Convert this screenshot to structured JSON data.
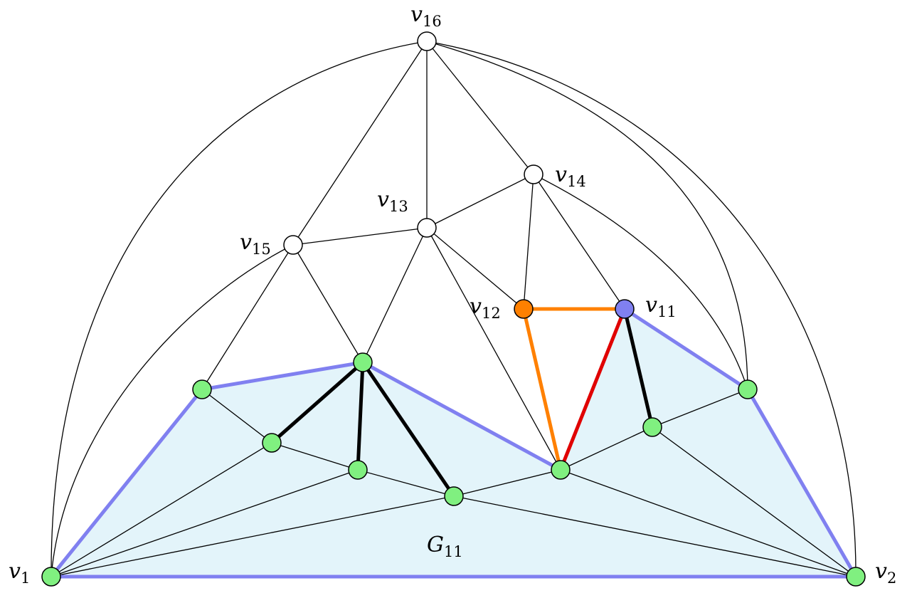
{
  "graph": {
    "region_label": {
      "base": "G",
      "sub": "11"
    },
    "vertex_labels": [
      {
        "id": "v1",
        "base": "v",
        "sub": "1"
      },
      {
        "id": "v2",
        "base": "v",
        "sub": "2"
      },
      {
        "id": "v11",
        "base": "v",
        "sub": "11"
      },
      {
        "id": "v12",
        "base": "v",
        "sub": "12"
      },
      {
        "id": "v13",
        "base": "v",
        "sub": "13"
      },
      {
        "id": "v14",
        "base": "v",
        "sub": "14"
      },
      {
        "id": "v15",
        "base": "v",
        "sub": "15"
      },
      {
        "id": "v16",
        "base": "v",
        "sub": "16"
      }
    ],
    "colors": {
      "region_fill": "#e3f4fa",
      "outer_face": "#8080f0",
      "green_vertex": "#80f080",
      "white_vertex": "#ffffff",
      "orange": "#ff8000",
      "red": "#e00000",
      "blue_vertex": "#8080f0",
      "black": "#000000"
    }
  }
}
